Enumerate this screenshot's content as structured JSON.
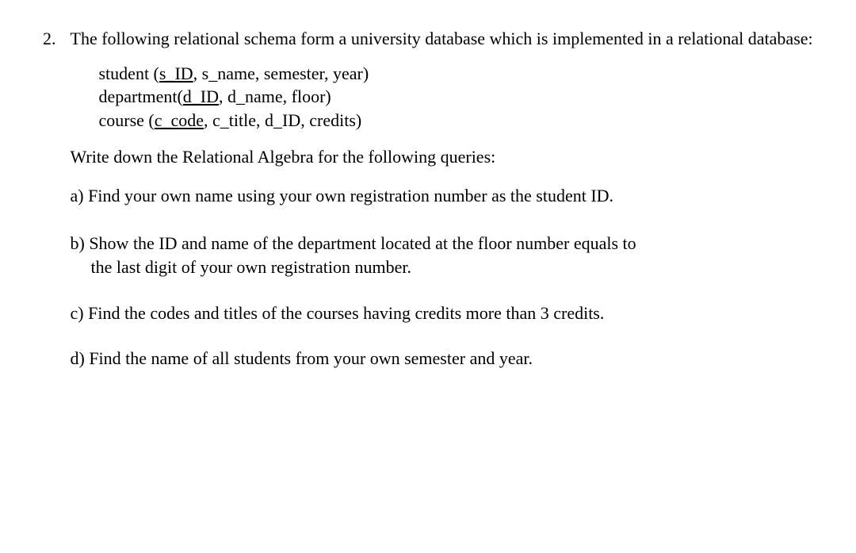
{
  "question": {
    "number": "2.",
    "intro": "The following relational schema form a university database which is implemented in a relational database:",
    "schema": {
      "student": {
        "relation": "student (",
        "pk": "s_ID",
        "rest": ", s_name, semester, year)"
      },
      "department": {
        "relation": "department(",
        "pk": "d_ID",
        "rest": ", d_name, floor)"
      },
      "course": {
        "relation": "course (",
        "pk": "c_code",
        "rest": ", c_title, d_ID, credits)"
      }
    },
    "prompt": "Write down the Relational Algebra for the following queries:",
    "parts": {
      "a": "a) Find your own name using your own registration number as the student ID.",
      "b_line1": "b) Show the ID and name of the department located at the floor number equals to",
      "b_line2": "the last digit of your own registration number.",
      "c": "c) Find the codes and titles of the courses having credits more than 3 credits.",
      "d": "d) Find the name of all students from your own semester and year."
    }
  }
}
